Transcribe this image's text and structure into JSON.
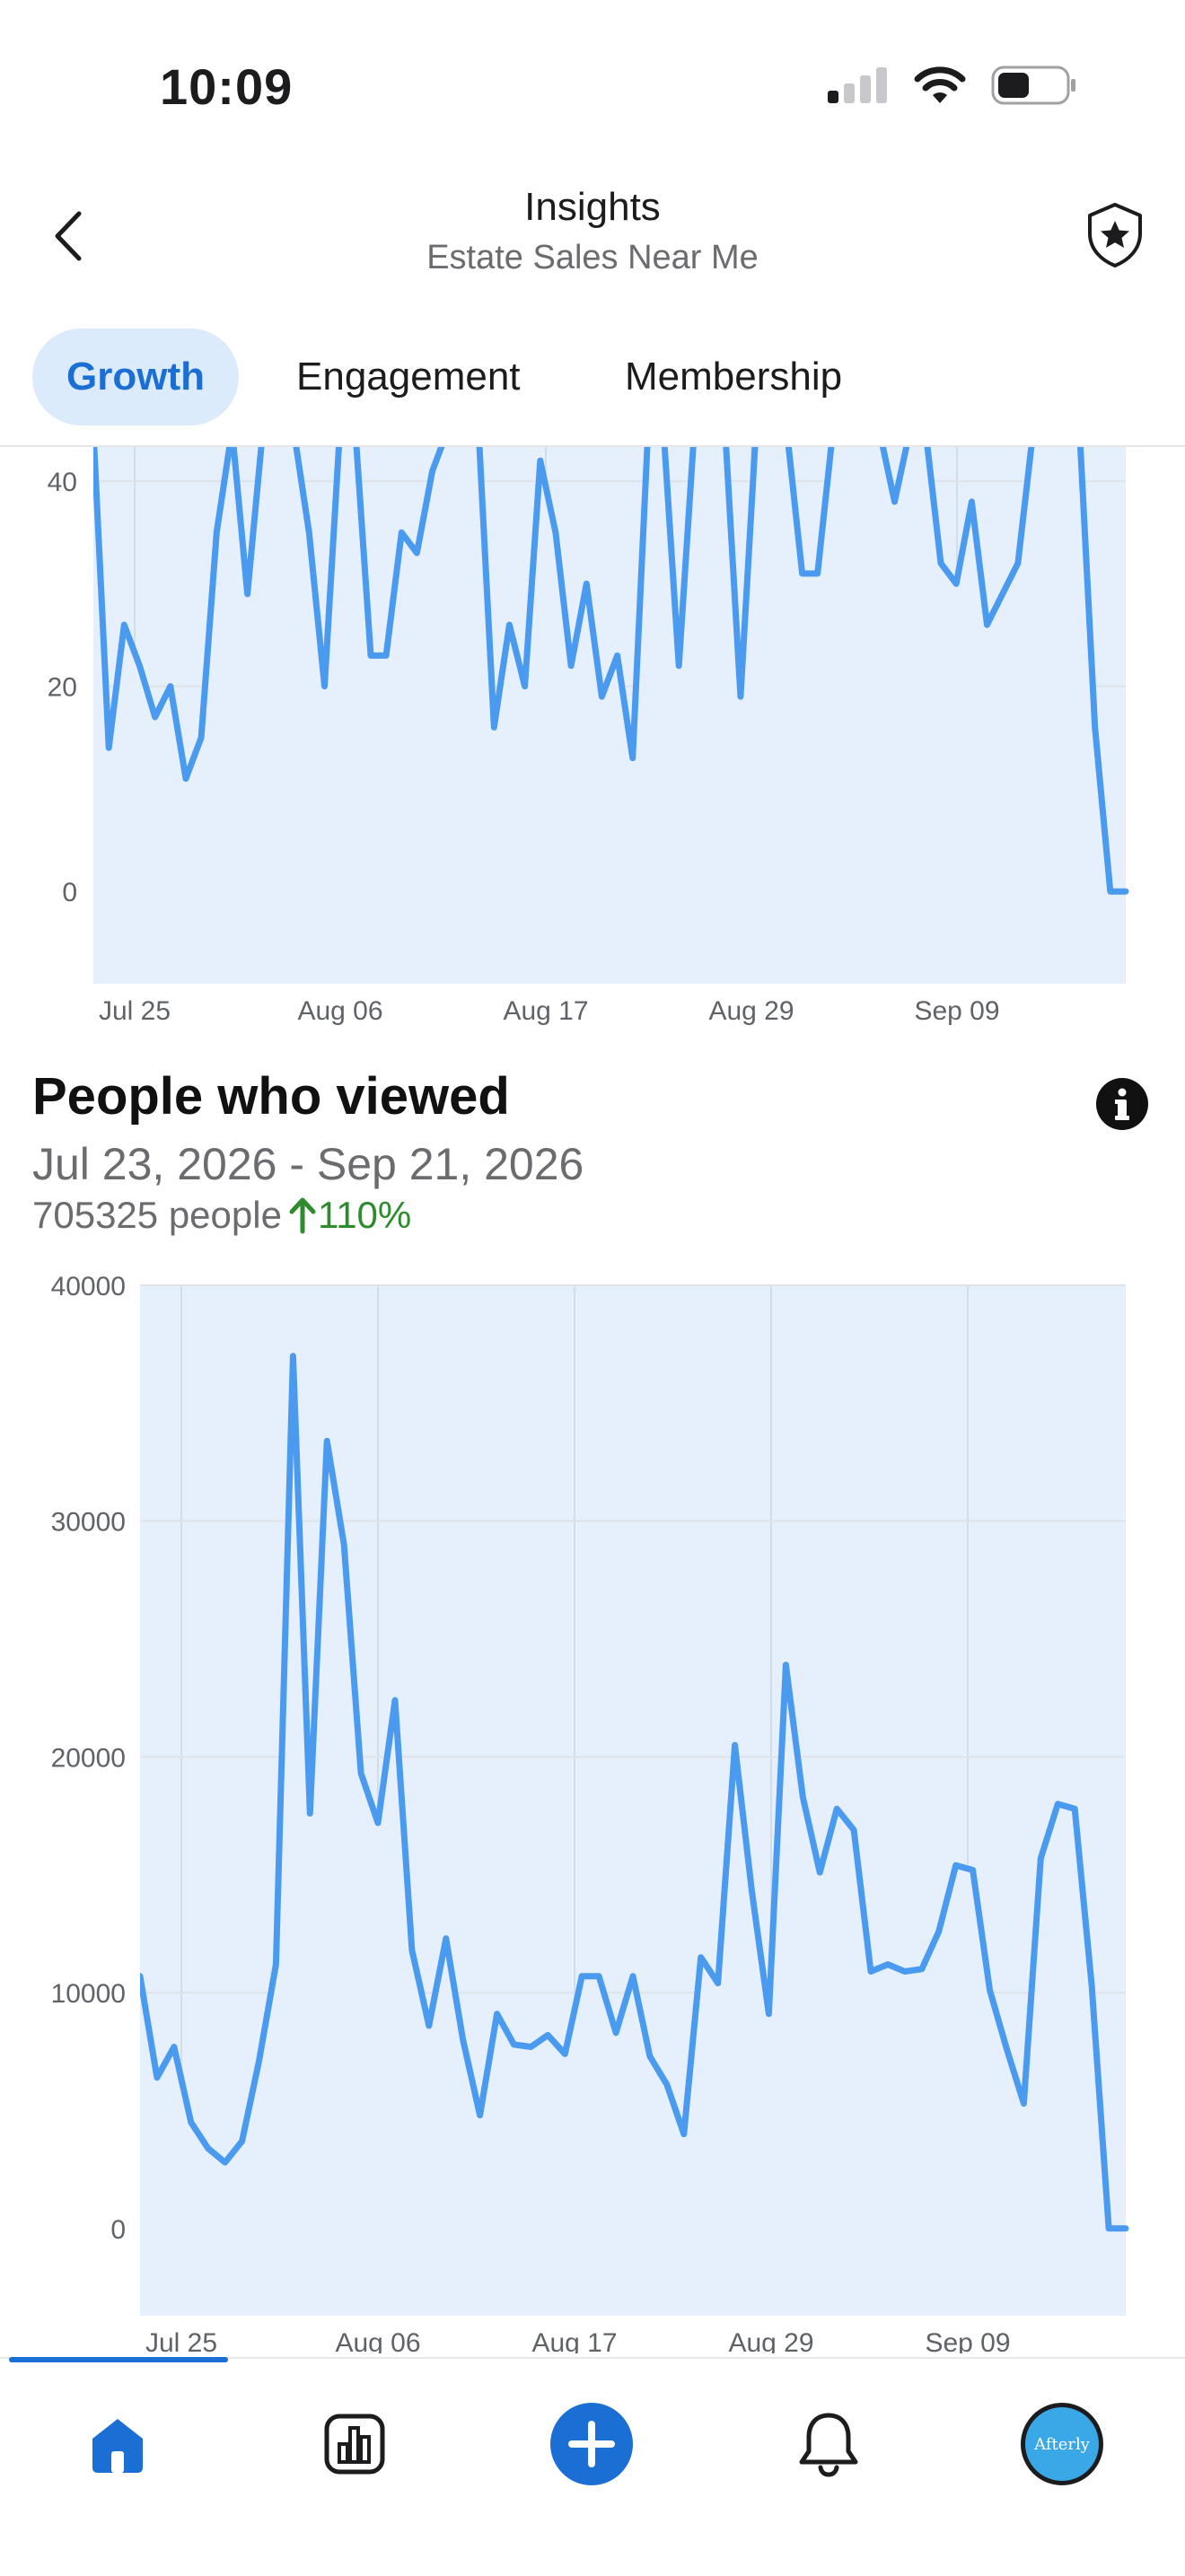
{
  "status_bar": {
    "time": "10:09"
  },
  "header": {
    "title": "Insights",
    "subtitle": "Estate Sales Near Me"
  },
  "tabs": [
    {
      "label": "Growth",
      "active": true
    },
    {
      "label": "Engagement",
      "active": false
    },
    {
      "label": "Membership",
      "active": false
    }
  ],
  "colors": {
    "accent": "#1b6fd4",
    "line": "#4a9af0",
    "fill": "#e5f0fc",
    "positive": "#2e8b2e"
  },
  "top_chart": {
    "chart_data": {
      "type": "area",
      "x_ticks": [
        "Jul 25",
        "Aug 06",
        "Aug 17",
        "Aug 29",
        "Sep 09"
      ],
      "y_ticks": [
        "0",
        "20",
        "40"
      ],
      "ylim": [
        -9,
        45
      ],
      "x_start_tick_index": 0,
      "values": [
        45,
        14,
        26,
        22,
        17,
        20,
        11,
        15,
        35,
        45,
        29,
        45,
        45,
        45,
        35,
        20,
        45,
        45,
        23,
        23,
        35,
        33,
        41,
        45,
        45,
        45,
        16,
        26,
        20,
        42,
        35,
        22,
        30,
        19,
        23,
        13,
        45,
        45,
        22,
        45,
        45,
        45,
        19,
        45,
        45,
        45,
        31,
        31,
        45,
        45,
        45,
        45,
        38,
        45,
        45,
        32,
        30,
        38,
        26,
        29,
        32,
        45,
        45,
        45,
        45,
        16,
        0,
        0
      ]
    }
  },
  "viewers": {
    "title": "People who viewed",
    "date_range": "Jul 23, 2026 - Sep 21, 2026",
    "count_text": "705325 people",
    "change_text": "110%",
    "chart_data": {
      "type": "area",
      "x_ticks": [
        "Jul 25",
        "Aug 06",
        "Aug 17",
        "Aug 29",
        "Sep 09"
      ],
      "y_ticks": [
        "0",
        "10000",
        "20000",
        "30000",
        "40000"
      ],
      "ylim": [
        -3700,
        40000
      ],
      "values": [
        10700,
        6400,
        7700,
        4500,
        3400,
        2800,
        3700,
        7100,
        11200,
        37000,
        17600,
        33400,
        29000,
        19300,
        17200,
        22400,
        11800,
        8600,
        12300,
        8000,
        4800,
        9100,
        7800,
        7700,
        8200,
        7400,
        10700,
        10700,
        8300,
        10700,
        7300,
        6100,
        4000,
        11500,
        10400,
        20500,
        14300,
        9100,
        23900,
        18300,
        15100,
        17800,
        16900,
        10900,
        11200,
        10900,
        11000,
        12600,
        15400,
        15200,
        10100,
        7600,
        5300,
        15700,
        18000,
        17800,
        10300,
        0,
        0
      ]
    }
  },
  "tabbar": {
    "items": [
      {
        "icon": "home-icon",
        "active": true
      },
      {
        "icon": "insights-chart-icon",
        "active": false
      },
      {
        "icon": "add-icon",
        "active": false
      },
      {
        "icon": "bell-icon",
        "active": false
      },
      {
        "icon": "profile-avatar",
        "active": false
      }
    ],
    "avatar_text": "Afterly"
  }
}
